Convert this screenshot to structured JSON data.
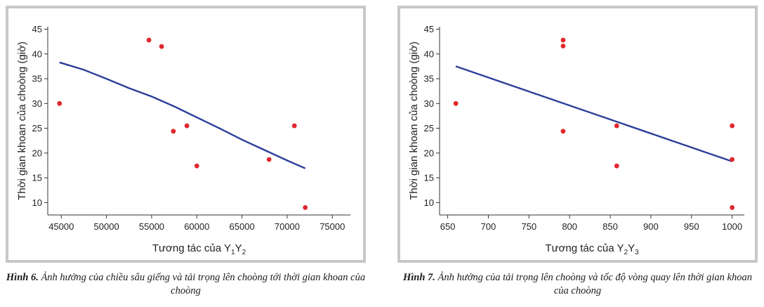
{
  "figures": [
    {
      "caption_lead": "Hình 6.",
      "caption_text": " Ảnh hưởng của chiều sâu giếng và tải trọng lên choòng tới thời gian khoan của choòng",
      "xlabel_main": "Tương tác của Y",
      "xlabel_sub1": "1",
      "xlabel_mid": "Y",
      "xlabel_sub2": "2",
      "ylabel": "Thời gian khoan của choòng (giờ)"
    },
    {
      "caption_lead": "Hình 7.",
      "caption_text": " Ảnh hưởng của tải trọng lên choòng và tốc độ vòng quay lên thời gian khoan của choòng",
      "xlabel_main": "Tương tác của Y",
      "xlabel_sub1": "2",
      "xlabel_mid": "Y",
      "xlabel_sub2": "3",
      "ylabel": "Thời gian khoan của choòng (giờ)"
    }
  ],
  "colors": {
    "points": "#e0282e",
    "trend": "#2c3e9a",
    "frame": "#c8c8c8"
  },
  "chart_data": [
    {
      "type": "scatter",
      "title": "",
      "xlabel": "Tương tác của Y1Y2",
      "ylabel": "Thời gian khoan của choòng (giờ)",
      "xlim": [
        43500,
        77000
      ],
      "ylim": [
        7.5,
        45.5
      ],
      "xticks": [
        45000,
        50000,
        55000,
        60000,
        65000,
        70000,
        75000
      ],
      "yticks": [
        10,
        15,
        20,
        25,
        30,
        35,
        40,
        45
      ],
      "points": [
        {
          "x": 44800,
          "y": 30.0
        },
        {
          "x": 54700,
          "y": 42.8
        },
        {
          "x": 56100,
          "y": 41.5
        },
        {
          "x": 57400,
          "y": 24.4
        },
        {
          "x": 58900,
          "y": 25.5
        },
        {
          "x": 60000,
          "y": 17.4
        },
        {
          "x": 68000,
          "y": 18.7
        },
        {
          "x": 70800,
          "y": 25.5
        },
        {
          "x": 72000,
          "y": 9.0
        }
      ],
      "trend": [
        [
          44800,
          38.3
        ],
        [
          47500,
          36.8
        ],
        [
          50000,
          35.0
        ],
        [
          52500,
          33.1
        ],
        [
          55000,
          31.4
        ],
        [
          57500,
          29.4
        ],
        [
          60000,
          27.2
        ],
        [
          62500,
          25.0
        ],
        [
          65000,
          22.7
        ],
        [
          67500,
          20.6
        ],
        [
          70000,
          18.5
        ],
        [
          72000,
          16.9
        ]
      ],
      "grid": false,
      "legend": "none"
    },
    {
      "type": "scatter",
      "title": "",
      "xlabel": "Tương tác của Y2Y3",
      "ylabel": "Thời gian khoan của choòng (giờ)",
      "xlim": [
        640,
        1015
      ],
      "ylim": [
        7.5,
        45.5
      ],
      "xticks": [
        650,
        700,
        750,
        800,
        850,
        900,
        950,
        1000
      ],
      "yticks": [
        10,
        15,
        20,
        25,
        30,
        35,
        40,
        45
      ],
      "points": [
        {
          "x": 660,
          "y": 30.0
        },
        {
          "x": 792,
          "y": 42.8
        },
        {
          "x": 792,
          "y": 41.6
        },
        {
          "x": 792,
          "y": 24.4
        },
        {
          "x": 858,
          "y": 25.5
        },
        {
          "x": 858,
          "y": 17.4
        },
        {
          "x": 1000,
          "y": 25.5
        },
        {
          "x": 1000,
          "y": 18.7
        },
        {
          "x": 1000,
          "y": 9.0
        }
      ],
      "trend": [
        [
          660,
          37.5
        ],
        [
          1000,
          18.3
        ]
      ],
      "grid": false,
      "legend": "none"
    }
  ]
}
